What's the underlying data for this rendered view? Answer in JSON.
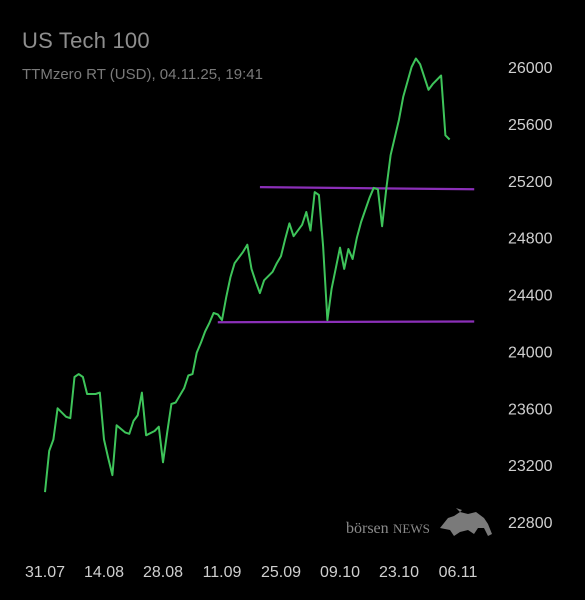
{
  "header": {
    "title": "US Tech 100",
    "subtitle": "TTMzero RT (USD), 04.11.25, 19:41"
  },
  "watermark": {
    "text_lower": "börsen",
    "text_upper": "NEWS",
    "icon": "bull-icon"
  },
  "colors": {
    "background": "#000000",
    "line": "#3ec45a",
    "level_lines": "#8b2fb8",
    "text": "#cfcfcf"
  },
  "chart_data": {
    "type": "line",
    "title": "US Tech 100",
    "subtitle": "TTMzero RT (USD), 04.11.25, 19:41",
    "ylim": [
      22700,
      26150
    ],
    "xlim": [
      "2025-07-28",
      "2025-11-07"
    ],
    "yticks": [
      22800,
      23200,
      23600,
      24000,
      24400,
      24800,
      25200,
      25600,
      26000
    ],
    "xticks": [
      {
        "date": "2025-07-31",
        "label": "31.07"
      },
      {
        "date": "2025-08-14",
        "label": "14.08"
      },
      {
        "date": "2025-08-28",
        "label": "28.08"
      },
      {
        "date": "2025-09-11",
        "label": "11.09"
      },
      {
        "date": "2025-09-25",
        "label": "25.09"
      },
      {
        "date": "2025-10-09",
        "label": "09.10"
      },
      {
        "date": "2025-10-23",
        "label": "23.10"
      },
      {
        "date": "2025-11-06",
        "label": "06.11"
      }
    ],
    "y_axis_position": "right",
    "grid": false,
    "series": [
      {
        "points": [
          [
            "2025-07-31",
            23010
          ],
          [
            "2025-08-01",
            23300
          ],
          [
            "2025-08-02",
            23380
          ],
          [
            "2025-08-03",
            23600
          ],
          [
            "2025-08-05",
            23540
          ],
          [
            "2025-08-06",
            23530
          ],
          [
            "2025-08-07",
            23820
          ],
          [
            "2025-08-08",
            23840
          ],
          [
            "2025-08-09",
            23820
          ],
          [
            "2025-08-10",
            23700
          ],
          [
            "2025-08-12",
            23700
          ],
          [
            "2025-08-13",
            23710
          ],
          [
            "2025-08-14",
            23380
          ],
          [
            "2025-08-15",
            23250
          ],
          [
            "2025-08-16",
            23130
          ],
          [
            "2025-08-17",
            23480
          ],
          [
            "2025-08-19",
            23430
          ],
          [
            "2025-08-20",
            23420
          ],
          [
            "2025-08-21",
            23510
          ],
          [
            "2025-08-22",
            23550
          ],
          [
            "2025-08-23",
            23710
          ],
          [
            "2025-08-24",
            23410
          ],
          [
            "2025-08-26",
            23440
          ],
          [
            "2025-08-27",
            23470
          ],
          [
            "2025-08-28",
            23220
          ],
          [
            "2025-08-29",
            23430
          ],
          [
            "2025-08-30",
            23630
          ],
          [
            "2025-08-31",
            23640
          ],
          [
            "2025-09-02",
            23740
          ],
          [
            "2025-09-03",
            23830
          ],
          [
            "2025-09-04",
            23840
          ],
          [
            "2025-09-05",
            23990
          ],
          [
            "2025-09-06",
            24060
          ],
          [
            "2025-09-07",
            24140
          ],
          [
            "2025-09-08",
            24200
          ],
          [
            "2025-09-09",
            24270
          ],
          [
            "2025-09-10",
            24260
          ],
          [
            "2025-09-11",
            24220
          ],
          [
            "2025-09-12",
            24380
          ],
          [
            "2025-09-13",
            24520
          ],
          [
            "2025-09-14",
            24620
          ],
          [
            "2025-09-16",
            24700
          ],
          [
            "2025-09-17",
            24750
          ],
          [
            "2025-09-18",
            24580
          ],
          [
            "2025-09-19",
            24490
          ],
          [
            "2025-09-20",
            24410
          ],
          [
            "2025-09-21",
            24500
          ],
          [
            "2025-09-23",
            24560
          ],
          [
            "2025-09-24",
            24620
          ],
          [
            "2025-09-25",
            24670
          ],
          [
            "2025-09-26",
            24790
          ],
          [
            "2025-09-27",
            24900
          ],
          [
            "2025-09-28",
            24810
          ],
          [
            "2025-09-30",
            24890
          ],
          [
            "2025-10-01",
            24980
          ],
          [
            "2025-10-02",
            24850
          ],
          [
            "2025-10-03",
            25120
          ],
          [
            "2025-10-04",
            25100
          ],
          [
            "2025-10-05",
            24740
          ],
          [
            "2025-10-06",
            24220
          ],
          [
            "2025-10-07",
            24440
          ],
          [
            "2025-10-09",
            24730
          ],
          [
            "2025-10-10",
            24580
          ],
          [
            "2025-10-11",
            24720
          ],
          [
            "2025-10-12",
            24650
          ],
          [
            "2025-10-13",
            24800
          ],
          [
            "2025-10-14",
            24910
          ],
          [
            "2025-10-16",
            25080
          ],
          [
            "2025-10-17",
            25150
          ],
          [
            "2025-10-18",
            25140
          ],
          [
            "2025-10-19",
            24880
          ],
          [
            "2025-10-20",
            25150
          ],
          [
            "2025-10-21",
            25380
          ],
          [
            "2025-10-23",
            25630
          ],
          [
            "2025-10-24",
            25790
          ],
          [
            "2025-10-26",
            26000
          ],
          [
            "2025-10-27",
            26060
          ],
          [
            "2025-10-28",
            26020
          ],
          [
            "2025-10-30",
            25840
          ],
          [
            "2025-10-31",
            25880
          ],
          [
            "2025-11-02",
            25940
          ],
          [
            "2025-11-03",
            25520
          ],
          [
            "2025-11-04",
            25490
          ]
        ]
      }
    ],
    "annotations": [
      {
        "type": "hline",
        "y_start": 25155,
        "y_end": 25140,
        "x_start": "2025-09-20",
        "x_end": "2025-11-07"
      },
      {
        "type": "hline",
        "y_start": 24205,
        "y_end": 24210,
        "x_start": "2025-09-10",
        "x_end": "2025-11-07"
      }
    ]
  }
}
